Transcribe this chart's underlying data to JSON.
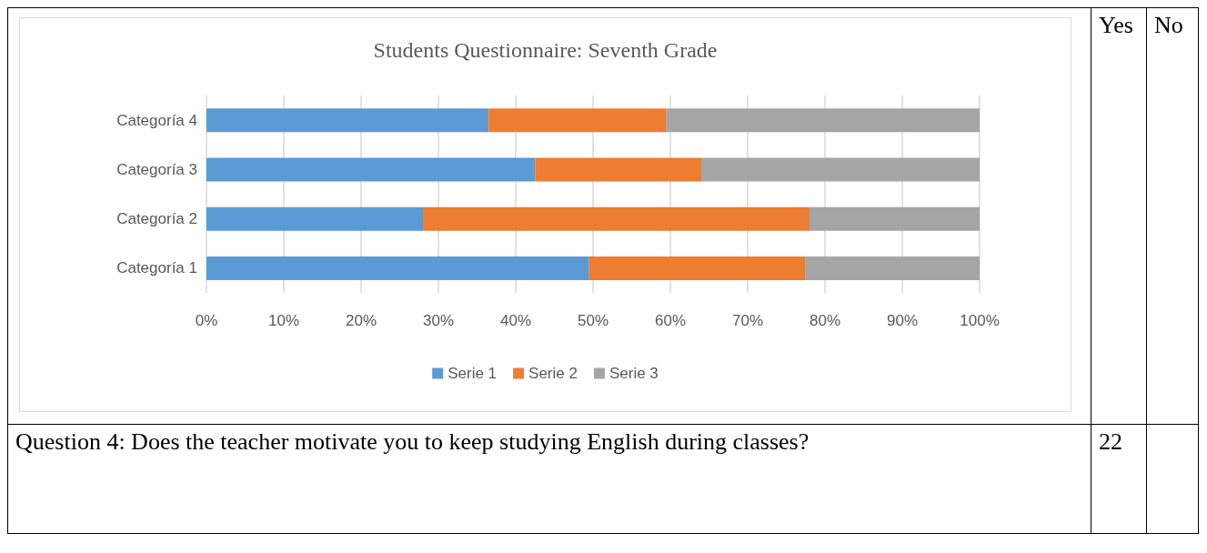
{
  "chart_data": {
    "type": "bar",
    "orientation": "horizontal",
    "stacked": true,
    "title": "Students Questionnaire: Seventh Grade",
    "categories": [
      "Categoría 4",
      "Categoría 3",
      "Categoría 2",
      "Categoría 1"
    ],
    "series": [
      {
        "name": "Serie 1",
        "color": "#5b9bd5",
        "values": [
          36.5,
          42.5,
          28,
          49.5
        ]
      },
      {
        "name": "Serie 2",
        "color": "#ed7d31",
        "values": [
          23,
          21.5,
          50,
          28
        ]
      },
      {
        "name": "Serie 3",
        "color": "#a5a5a5",
        "values": [
          40.5,
          36,
          22,
          22.5
        ]
      }
    ],
    "xlim": [
      0,
      100
    ],
    "xticks": [
      {
        "value": 0,
        "label": "0%"
      },
      {
        "value": 10,
        "label": "10%"
      },
      {
        "value": 20,
        "label": "20%"
      },
      {
        "value": 30,
        "label": "30%"
      },
      {
        "value": 40,
        "label": "40%"
      },
      {
        "value": 50,
        "label": "50%"
      },
      {
        "value": 60,
        "label": "60%"
      },
      {
        "value": 70,
        "label": "70%"
      },
      {
        "value": 80,
        "label": "80%"
      },
      {
        "value": 90,
        "label": "90%"
      },
      {
        "value": 100,
        "label": "100%"
      }
    ],
    "grid": "x",
    "legend": "bottom",
    "annotations": [
      "Yes",
      "No",
      "Question 4: Does the teacher motivate you to keep studying English during classes?",
      "22"
    ]
  }
}
